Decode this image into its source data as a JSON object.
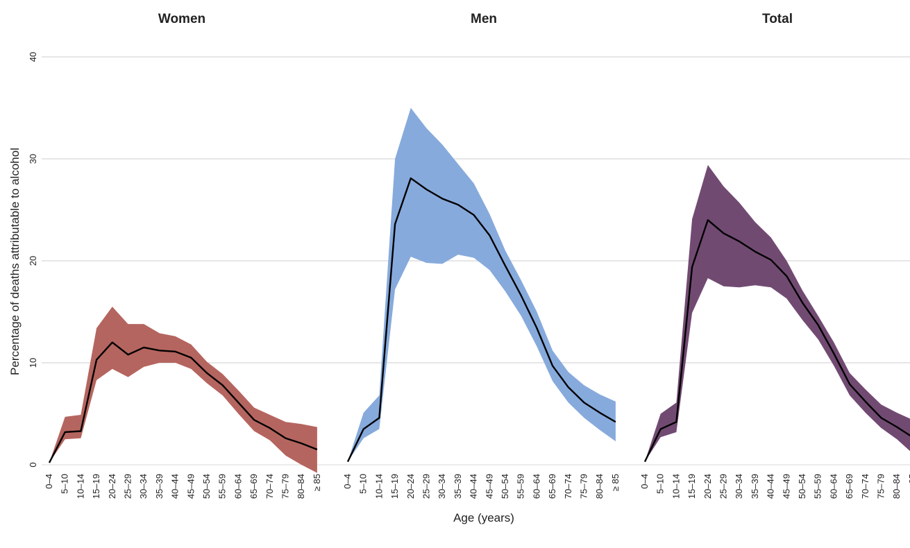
{
  "chart_data": {
    "type": "area",
    "categories": [
      "0–4",
      "5–10",
      "10–14",
      "15–19",
      "20–24",
      "25–29",
      "30–34",
      "35–39",
      "40–44",
      "45–49",
      "50–54",
      "55–59",
      "60–64",
      "65–69",
      "70–74",
      "75–79",
      "80–84",
      "≥ 85"
    ],
    "xlabel": "Age (years)",
    "ylabel": "Percentage of deaths attributable to alcohol",
    "ylim": [
      0,
      40
    ],
    "yticks": [
      "0",
      "10",
      "20",
      "30",
      "40"
    ],
    "grid": true,
    "panels": [
      {
        "title": "Women",
        "color": "#b5655f",
        "values": [
          0.2,
          3.2,
          3.3,
          10.3,
          12.0,
          10.8,
          11.5,
          11.2,
          11.1,
          10.5,
          9.0,
          7.8,
          6.1,
          4.4,
          3.6,
          2.6,
          2.1,
          1.5
        ],
        "lower": [
          0.2,
          2.5,
          2.6,
          8.3,
          9.4,
          8.6,
          9.6,
          10.0,
          10.0,
          9.4,
          8.0,
          6.8,
          5.0,
          3.3,
          2.4,
          0.9,
          0.0,
          -0.8
        ],
        "upper": [
          0.2,
          4.7,
          4.9,
          13.4,
          15.5,
          13.8,
          13.8,
          12.9,
          12.6,
          11.8,
          10.1,
          8.9,
          7.3,
          5.6,
          4.9,
          4.2,
          4.0,
          3.7
        ]
      },
      {
        "title": "Men",
        "color": "#87aadc",
        "values": [
          0.3,
          3.5,
          4.6,
          23.6,
          28.1,
          27.0,
          26.1,
          25.5,
          24.5,
          22.5,
          19.5,
          16.6,
          13.4,
          9.7,
          7.6,
          6.1,
          5.1,
          4.2
        ],
        "lower": [
          0.3,
          2.6,
          3.5,
          17.2,
          20.4,
          19.8,
          19.7,
          20.6,
          20.3,
          19.1,
          17.0,
          14.6,
          11.6,
          8.2,
          6.1,
          4.6,
          3.4,
          2.3
        ],
        "upper": [
          0.3,
          5.1,
          6.8,
          30.0,
          35.0,
          33.0,
          31.4,
          29.5,
          27.6,
          24.6,
          21.0,
          18.1,
          15.0,
          11.2,
          9.1,
          7.8,
          6.9,
          6.2
        ]
      },
      {
        "title": "Total",
        "color": "#714a72",
        "values": [
          0.3,
          3.5,
          4.2,
          19.4,
          24.0,
          22.7,
          21.9,
          20.9,
          20.1,
          18.5,
          15.9,
          13.7,
          10.9,
          7.9,
          6.2,
          4.6,
          3.7,
          2.7
        ],
        "lower": [
          0.3,
          2.7,
          3.2,
          14.9,
          18.3,
          17.5,
          17.4,
          17.6,
          17.4,
          16.3,
          14.2,
          12.3,
          9.7,
          6.8,
          5.1,
          3.6,
          2.5,
          1.1
        ],
        "upper": [
          0.3,
          5.0,
          6.1,
          24.1,
          29.4,
          27.3,
          25.7,
          23.8,
          22.3,
          20.0,
          17.1,
          14.6,
          12.0,
          9.0,
          7.4,
          5.9,
          5.1,
          4.4
        ]
      }
    ]
  }
}
